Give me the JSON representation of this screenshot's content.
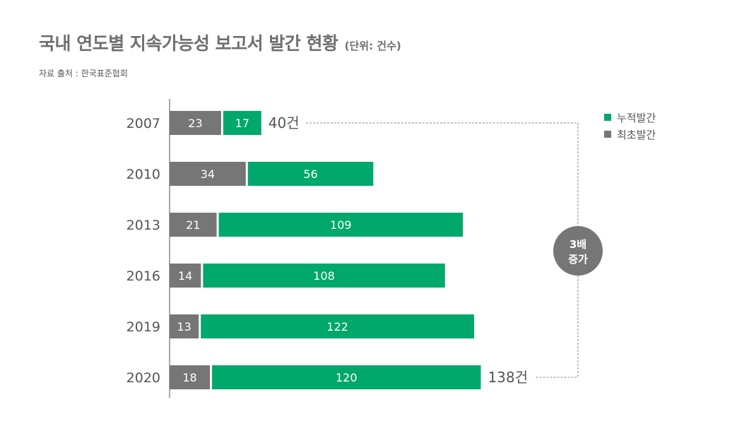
{
  "header": {
    "title": "국내 연도별 지속가능성 보고서 발간 현황",
    "unit": "(단위: 건수)",
    "source": "자료 출처 : 한국표준협회"
  },
  "colors": {
    "first": "#767676",
    "cumulative": "#00a86b",
    "badge": "#767676"
  },
  "chart_data": {
    "type": "bar",
    "orientation": "horizontal",
    "stacked": true,
    "categories": [
      "2007",
      "2010",
      "2013",
      "2016",
      "2019",
      "2020"
    ],
    "series": [
      {
        "name": "최초발간",
        "values": [
          23,
          34,
          21,
          14,
          13,
          18
        ]
      },
      {
        "name": "누적발간",
        "values": [
          17,
          56,
          109,
          108,
          122,
          120
        ]
      }
    ],
    "total_labels": [
      {
        "category": "2007",
        "text": "40건"
      },
      {
        "category": "2020",
        "text": "138건"
      }
    ],
    "annotation": {
      "line1": "3배",
      "line2": "증가"
    },
    "legend_position": "top-right",
    "grid": false
  }
}
